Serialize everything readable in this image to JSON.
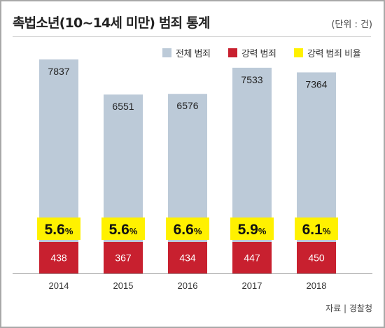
{
  "title": "촉법소년(10~14세 미만) 범죄 통계",
  "unit_label": "(단위 : 건)",
  "source": "자료 | 경찰청",
  "legend": [
    {
      "label": "전체 범죄",
      "color": "#bccad8"
    },
    {
      "label": "강력 범죄",
      "color": "#c8202f"
    },
    {
      "label": "강력 범죄 비율",
      "color": "#fff100"
    }
  ],
  "chart_data": {
    "type": "bar",
    "categories": [
      "2014",
      "2015",
      "2016",
      "2017",
      "2018"
    ],
    "series": [
      {
        "name": "전체 범죄",
        "values": [
          7837,
          6551,
          6576,
          7533,
          7364
        ],
        "color": "#bccad8"
      },
      {
        "name": "강력 범죄",
        "values": [
          438,
          367,
          434,
          447,
          450
        ],
        "color": "#c8202f"
      },
      {
        "name": "강력 범죄 비율",
        "values": [
          5.6,
          5.6,
          6.6,
          5.9,
          6.1
        ],
        "unit": "%",
        "color": "#fff100"
      }
    ],
    "grid": false,
    "legend_position": "top-right"
  }
}
